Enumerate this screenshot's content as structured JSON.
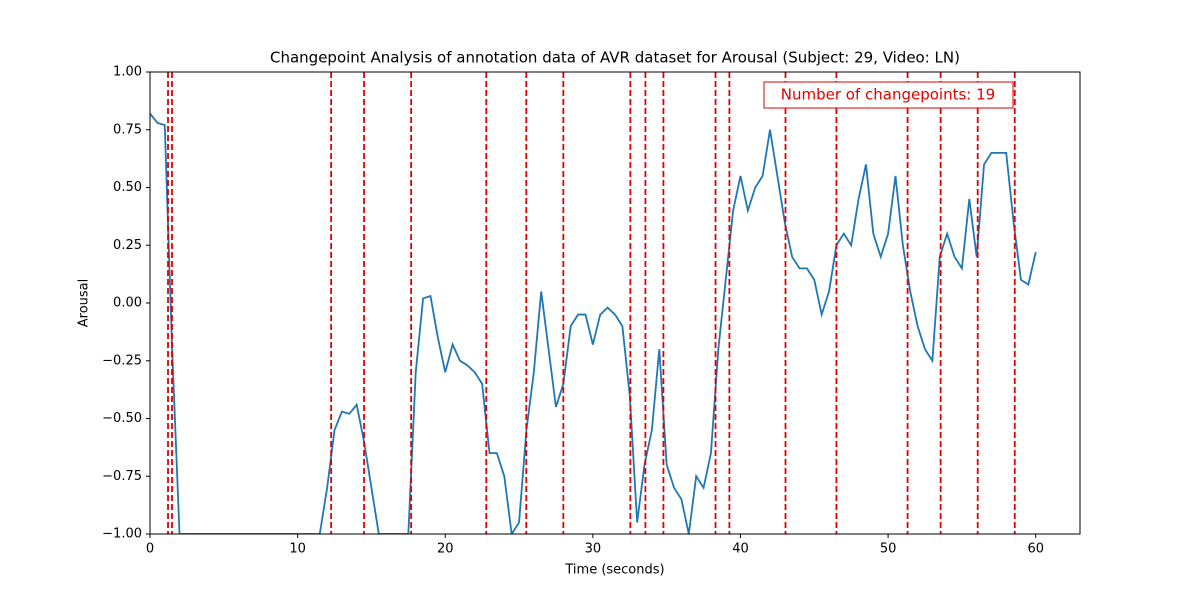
{
  "chart_data": {
    "type": "line",
    "title": "Changepoint Analysis of annotation data of AVR dataset for Arousal (Subject: 29, Video: LN)",
    "xlabel": "Time (seconds)",
    "ylabel": "Arousal",
    "annotation": "Number of changepoints: 19",
    "color": "#1f77b4",
    "changepoint_color": "#e00000",
    "x": [
      0,
      0.5,
      1,
      1.5,
      2,
      2.5,
      3,
      3.5,
      4,
      4.5,
      5,
      5.5,
      6,
      6.5,
      7,
      7.5,
      8,
      8.5,
      9,
      9.5,
      10,
      10.5,
      11,
      11.5,
      12,
      12.5,
      13,
      13.5,
      14,
      14.5,
      15,
      15.5,
      16,
      16.5,
      17,
      17.5,
      18,
      18.5,
      19,
      19.5,
      20,
      20.5,
      21,
      21.5,
      22,
      22.5,
      23,
      23.5,
      24,
      24.5,
      25,
      25.5,
      26,
      26.5,
      27,
      27.5,
      28,
      28.5,
      29,
      29.5,
      30,
      30.5,
      31,
      31.5,
      32,
      32.5,
      33,
      33.5,
      34,
      34.5,
      35,
      35.5,
      36,
      36.5,
      37,
      37.5,
      38,
      38.5,
      39,
      39.5,
      40,
      40.5,
      41,
      41.5,
      42,
      42.5,
      43,
      43.5,
      44,
      44.5,
      45,
      45.5,
      46,
      46.5,
      47,
      47.5,
      48,
      48.5,
      49,
      49.5,
      50,
      50.5,
      51,
      51.5,
      52,
      52.5,
      53,
      53.5,
      54,
      54.5,
      55,
      55.5,
      56,
      56.5,
      57,
      57.5,
      58,
      58.5,
      59,
      59.5,
      60
    ],
    "values": [
      0.82,
      0.78,
      0.77,
      -0.2,
      -1,
      -1,
      -1,
      -1,
      -1,
      -1,
      -1,
      -1,
      -1,
      -1,
      -1,
      -1,
      -1,
      -1,
      -1,
      -1,
      -1,
      -1,
      -1,
      -1,
      -0.8,
      -0.55,
      -0.47,
      -0.48,
      -0.44,
      -0.6,
      -0.8,
      -1,
      -1,
      -1,
      -1,
      -1,
      -0.3,
      0.02,
      0.03,
      -0.15,
      -0.3,
      -0.18,
      -0.25,
      -0.27,
      -0.3,
      -0.35,
      -0.65,
      -0.65,
      -0.75,
      -1,
      -0.95,
      -0.55,
      -0.3,
      0.05,
      -0.2,
      -0.45,
      -0.35,
      -0.1,
      -0.05,
      -0.05,
      -0.18,
      -0.05,
      -0.02,
      -0.05,
      -0.1,
      -0.4,
      -0.95,
      -0.7,
      -0.55,
      -0.2,
      -0.7,
      -0.8,
      -0.85,
      -1,
      -0.75,
      -0.8,
      -0.65,
      -0.2,
      0.1,
      0.4,
      0.55,
      0.4,
      0.5,
      0.55,
      0.75,
      0.55,
      0.35,
      0.2,
      0.15,
      0.15,
      0.1,
      -0.05,
      0.05,
      0.25,
      0.3,
      0.25,
      0.45,
      0.6,
      0.3,
      0.2,
      0.3,
      0.55,
      0.25,
      0.05,
      -0.1,
      -0.2,
      -0.25,
      0.2,
      0.3,
      0.2,
      0.15,
      0.45,
      0.2,
      0.6,
      0.65,
      0.65,
      0.65,
      0.35,
      0.1,
      0.08,
      0.22
    ],
    "changepoints": [
      1.22,
      1.49,
      12.27,
      14.5,
      17.69,
      22.78,
      25.49,
      28.0,
      32.54,
      33.56,
      34.78,
      38.31,
      39.25,
      43.05,
      46.5,
      51.32,
      53.56,
      56.07,
      58.58
    ],
    "xlim": [
      0,
      63
    ],
    "ylim": [
      -1,
      1
    ],
    "xticks": [
      0,
      10,
      20,
      30,
      40,
      50,
      60
    ],
    "yticks": [
      {
        "value": -1,
        "label": "−1.00"
      },
      {
        "value": -0.75,
        "label": "−0.75"
      },
      {
        "value": -0.5,
        "label": "−0.50"
      },
      {
        "value": -0.25,
        "label": "−0.25"
      },
      {
        "value": 0,
        "label": "0.00"
      },
      {
        "value": 0.25,
        "label": "0.25"
      },
      {
        "value": 0.5,
        "label": "0.50"
      },
      {
        "value": 0.75,
        "label": "0.75"
      },
      {
        "value": 1,
        "label": "1.00"
      }
    ],
    "grid": false
  }
}
